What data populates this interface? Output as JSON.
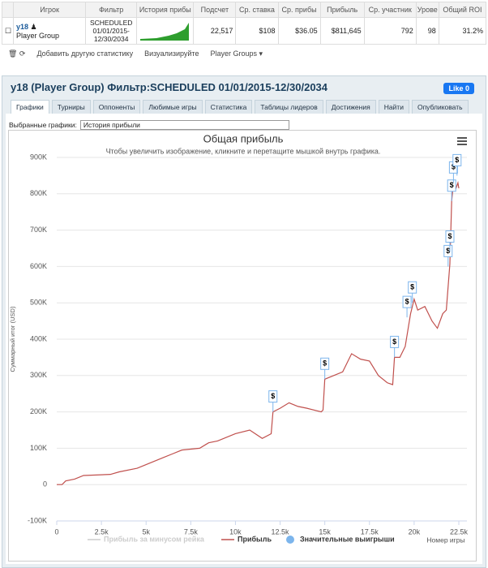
{
  "table": {
    "headers": [
      "",
      "Игрок",
      "Фильтр",
      "История прибы",
      "Подсчет",
      "Ср. ставка",
      "Ср. прибы",
      "Прибыль",
      "Ср. участник",
      "Урове",
      "Общий ROI"
    ],
    "row": {
      "player": "y18",
      "group": "Player Group",
      "filter": [
        "SCHEDULED",
        "01/01/2015-",
        "12/30/2034"
      ],
      "cells": [
        "22,517",
        "$108",
        "$36.05",
        "$811,645",
        "792",
        "98",
        "31.2%"
      ]
    }
  },
  "toolbar": {
    "items": [
      "Добавить другую статистику",
      "Визуализируйте",
      "Player Groups"
    ]
  },
  "panel": {
    "title": "y18 (Player Group) Фильтр:SCHEDULED 01/01/2015-12/30/2034",
    "like": "Like",
    "like_count": "0",
    "tabs": [
      "Графики",
      "Турниры",
      "Оппоненты",
      "Любимые игры",
      "Статистика",
      "Таблицы лидеров",
      "Достижения",
      "Найти",
      "Опубликовать"
    ],
    "select_label": "Выбранные графики:",
    "select_value": "История прибыли"
  },
  "chart_data": {
    "type": "line",
    "title": "Общая прибыль",
    "subtitle": "Чтобы увеличить изображение, кликните и перетащите мышкой внутрь графика.",
    "x_label": "Номер игры",
    "y_label": "Суммарный итог (USD)",
    "grid": true,
    "xlim": [
      0,
      22500
    ],
    "ylim": [
      -100000,
      900000
    ],
    "xticks": [
      0,
      {
        "value": 2500,
        "label": "2.5k"
      },
      {
        "value": 5000,
        "label": "5k"
      },
      {
        "value": 7500,
        "label": "7.5k"
      },
      {
        "value": 10000,
        "label": "10k"
      },
      {
        "value": 12500,
        "label": "12.5k"
      },
      {
        "value": 15000,
        "label": "15k"
      },
      {
        "value": 17500,
        "label": "17.5k"
      },
      {
        "value": 20000,
        "label": "20k"
      },
      {
        "value": 22500,
        "label": "22.5k"
      }
    ],
    "yticks": [
      {
        "value": -100000,
        "label": "-100K"
      },
      0,
      {
        "value": 100000,
        "label": "100K"
      },
      {
        "value": 200000,
        "label": "200K"
      },
      {
        "value": 300000,
        "label": "300K"
      },
      {
        "value": 400000,
        "label": "400K"
      },
      {
        "value": 500000,
        "label": "500K"
      },
      {
        "value": 600000,
        "label": "600K"
      },
      {
        "value": 700000,
        "label": "700K"
      },
      {
        "value": 800000,
        "label": "800K"
      },
      {
        "value": 900000,
        "label": "900K"
      }
    ],
    "series": [
      {
        "name": "Прибыль за минусом рейка",
        "color": "#cccccc",
        "visible": false
      },
      {
        "name": "Прибыль",
        "color": "#c0504d",
        "x": [
          0,
          300,
          500,
          1000,
          1500,
          3000,
          3500,
          4500,
          5000,
          6000,
          6500,
          7000,
          8000,
          8500,
          9000,
          10000,
          10800,
          11500,
          12000,
          12100,
          12500,
          13000,
          13500,
          14000,
          14800,
          14900,
          15000,
          15500,
          16000,
          16500,
          17000,
          17500,
          18000,
          18500,
          18800,
          18900,
          19200,
          19500,
          19800,
          20000,
          20200,
          20600,
          21000,
          21300,
          21600,
          21800,
          22000,
          22100,
          22200,
          22300,
          22450,
          22500
        ],
        "values": [
          0,
          0,
          10000,
          15000,
          25000,
          28000,
          35000,
          45000,
          55000,
          75000,
          85000,
          95000,
          100000,
          115000,
          120000,
          140000,
          150000,
          127000,
          140000,
          200000,
          210000,
          225000,
          215000,
          210000,
          200000,
          205000,
          290000,
          300000,
          310000,
          360000,
          345000,
          340000,
          300000,
          280000,
          275000,
          350000,
          350000,
          380000,
          470000,
          510000,
          480000,
          490000,
          450000,
          430000,
          470000,
          480000,
          607000,
          780000,
          830000,
          810000,
          830000,
          815000
        ]
      },
      {
        "name": "Значительные выигрыши",
        "color": "#7cb5ec",
        "label": "$",
        "x": [
          12100,
          15000,
          18900,
          19600,
          19900,
          21900,
          22000,
          22100,
          22200,
          22400
        ],
        "values": [
          200000,
          290000,
          350000,
          460000,
          500000,
          600000,
          640000,
          780000,
          830000,
          850000
        ]
      }
    ]
  }
}
